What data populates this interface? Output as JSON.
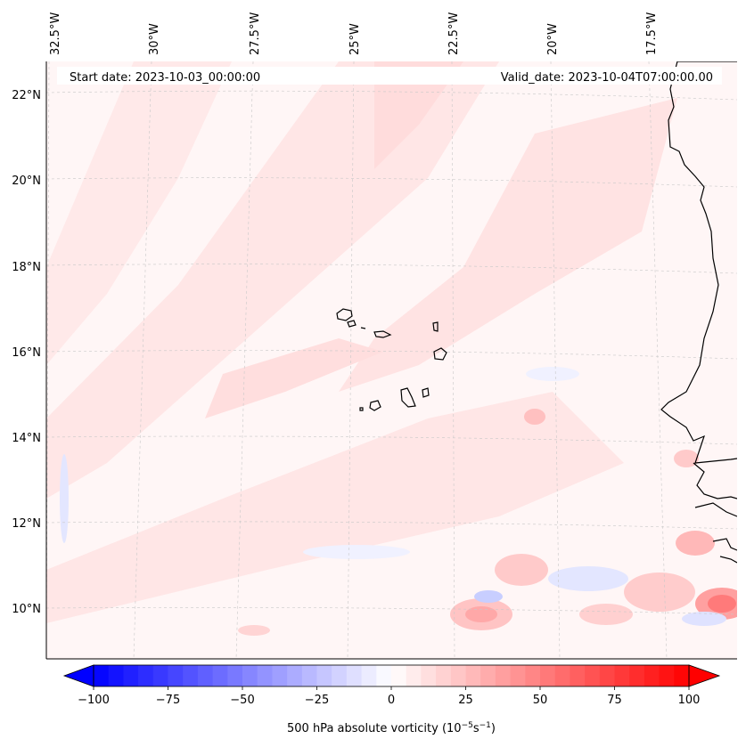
{
  "map": {
    "header": {
      "start_date": "Start date: 2023-10-03_00:00:00",
      "valid_date": "Valid_date: 2023-10-04T07:00:00.00"
    },
    "lon_labels": [
      "32.5°W",
      "30°W",
      "27.5°W",
      "25°W",
      "22.5°W",
      "20°W",
      "17.5°W"
    ],
    "lat_labels": [
      "22°N",
      "20°N",
      "18°N",
      "16°N",
      "14°N",
      "12°N",
      "10°N"
    ],
    "islands": [
      "Cape Verde islands"
    ],
    "gridlines": true,
    "field_colors": {
      "background": "#fff6f6",
      "positive_light": "#ffe4e4",
      "positive_mid": "#ffc9c9",
      "positive_strong": "#ff9e9e",
      "negative_light": "#eef0ff",
      "negative_mid": "#cdd2ff"
    }
  },
  "colorbar": {
    "label": "500 hPa absolute vorticity (10",
    "label_exp1": "−5",
    "label_mid": "s",
    "label_exp2": "−1",
    "label_end": ")",
    "ticks": [
      "−100",
      "−75",
      "−50",
      "−25",
      "0",
      "25",
      "50",
      "75",
      "100"
    ],
    "min": -100,
    "max": 100,
    "colormap": "bwr",
    "extend": "both"
  }
}
